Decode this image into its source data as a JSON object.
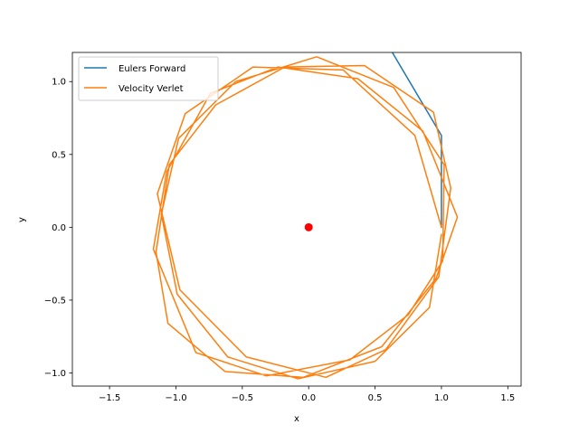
{
  "chart_data": {
    "type": "line",
    "title": "",
    "xlabel": "x",
    "ylabel": "y",
    "xlim": [
      -1.78,
      1.6
    ],
    "ylim": [
      -1.09,
      1.2
    ],
    "xticks": [
      -1.5,
      -1.0,
      -0.5,
      0.0,
      0.5,
      1.0,
      1.5
    ],
    "xtick_labels": [
      "−1.5",
      "−1.0",
      "−0.5",
      "0.0",
      "0.5",
      "1.0",
      "1.5"
    ],
    "yticks": [
      -1.0,
      -0.5,
      0.0,
      0.5,
      1.0
    ],
    "ytick_labels": [
      "−1.0",
      "−0.5",
      "0.0",
      "0.5",
      "1.0"
    ],
    "grid": false,
    "legend_position": "upper-left",
    "series": [
      {
        "name": "Eulers Forward",
        "color": "#1f77b4",
        "x": [
          1.0,
          1.0,
          0.63
        ],
        "y": [
          0.0,
          0.63,
          1.2
        ]
      },
      {
        "name": "Velocity Verlet",
        "color": "#ff7f0e",
        "x": [
          1.0,
          0.8,
          0.26,
          -0.42,
          -0.93,
          -1.14,
          -0.97,
          -0.47,
          0.13,
          0.58,
          0.98,
          1.07,
          0.94,
          0.42,
          -0.18,
          -0.7,
          -1.05,
          -1.15,
          -1.06,
          -0.63,
          -0.04,
          0.55,
          0.96,
          1.12,
          0.86,
          0.37,
          -0.23,
          -0.74,
          -1.07,
          -1.17,
          -0.85,
          -0.32,
          0.31,
          0.75,
          1.01,
          1.02,
          0.64,
          0.06,
          -0.55,
          -0.98,
          -1.11,
          -0.99,
          -0.61,
          -0.08,
          0.5,
          0.91,
          1.0
        ],
        "y": [
          0.0,
          0.63,
          1.08,
          1.1,
          0.78,
          0.23,
          -0.43,
          -0.89,
          -1.03,
          -0.84,
          -0.34,
          0.27,
          0.79,
          1.11,
          1.1,
          0.84,
          0.43,
          -0.17,
          -0.66,
          -0.99,
          -1.03,
          -0.82,
          -0.35,
          0.07,
          0.66,
          1.02,
          1.1,
          0.92,
          0.38,
          -0.15,
          -0.86,
          -1.02,
          -0.91,
          -0.6,
          -0.23,
          0.43,
          0.96,
          1.17,
          1.0,
          0.61,
          0.09,
          -0.46,
          -0.89,
          -1.04,
          -0.92,
          -0.55,
          -0.05
        ]
      }
    ],
    "marker": {
      "x": 0.0,
      "y": 0.0,
      "color": "#ff0000"
    }
  }
}
